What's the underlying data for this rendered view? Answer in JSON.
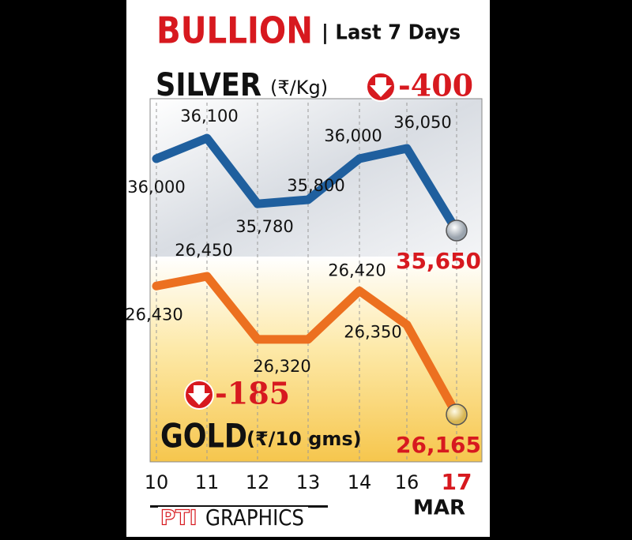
{
  "header": {
    "title": "BULLION",
    "subtitle": "| Last 7 Days"
  },
  "chart_data": {
    "type": "line",
    "categories": [
      "10",
      "11",
      "12",
      "13",
      "14",
      "16",
      "17"
    ],
    "x_unit": "MAR",
    "series": [
      {
        "name": "SILVER",
        "unit": "(₹/Kg)",
        "change": "-400",
        "color": "#1f5f9e",
        "values": [
          36000,
          36100,
          35780,
          35800,
          36000,
          36050,
          35650
        ],
        "value_labels": [
          "36,000",
          "36,100",
          "35,780",
          "35,800",
          "36,000",
          "36,050",
          "35,650"
        ]
      },
      {
        "name": "GOLD",
        "unit": "(₹/10 gms)",
        "change": "-185",
        "color": "#ec7020",
        "values": [
          26430,
          26450,
          26320,
          26320,
          26420,
          26350,
          26165
        ],
        "value_labels": [
          "26,430",
          "26,450",
          "26,320",
          null,
          "26,420",
          "26,350",
          "26,165"
        ]
      }
    ]
  },
  "footer": {
    "logo": "PTI",
    "text": "GRAPHICS"
  }
}
